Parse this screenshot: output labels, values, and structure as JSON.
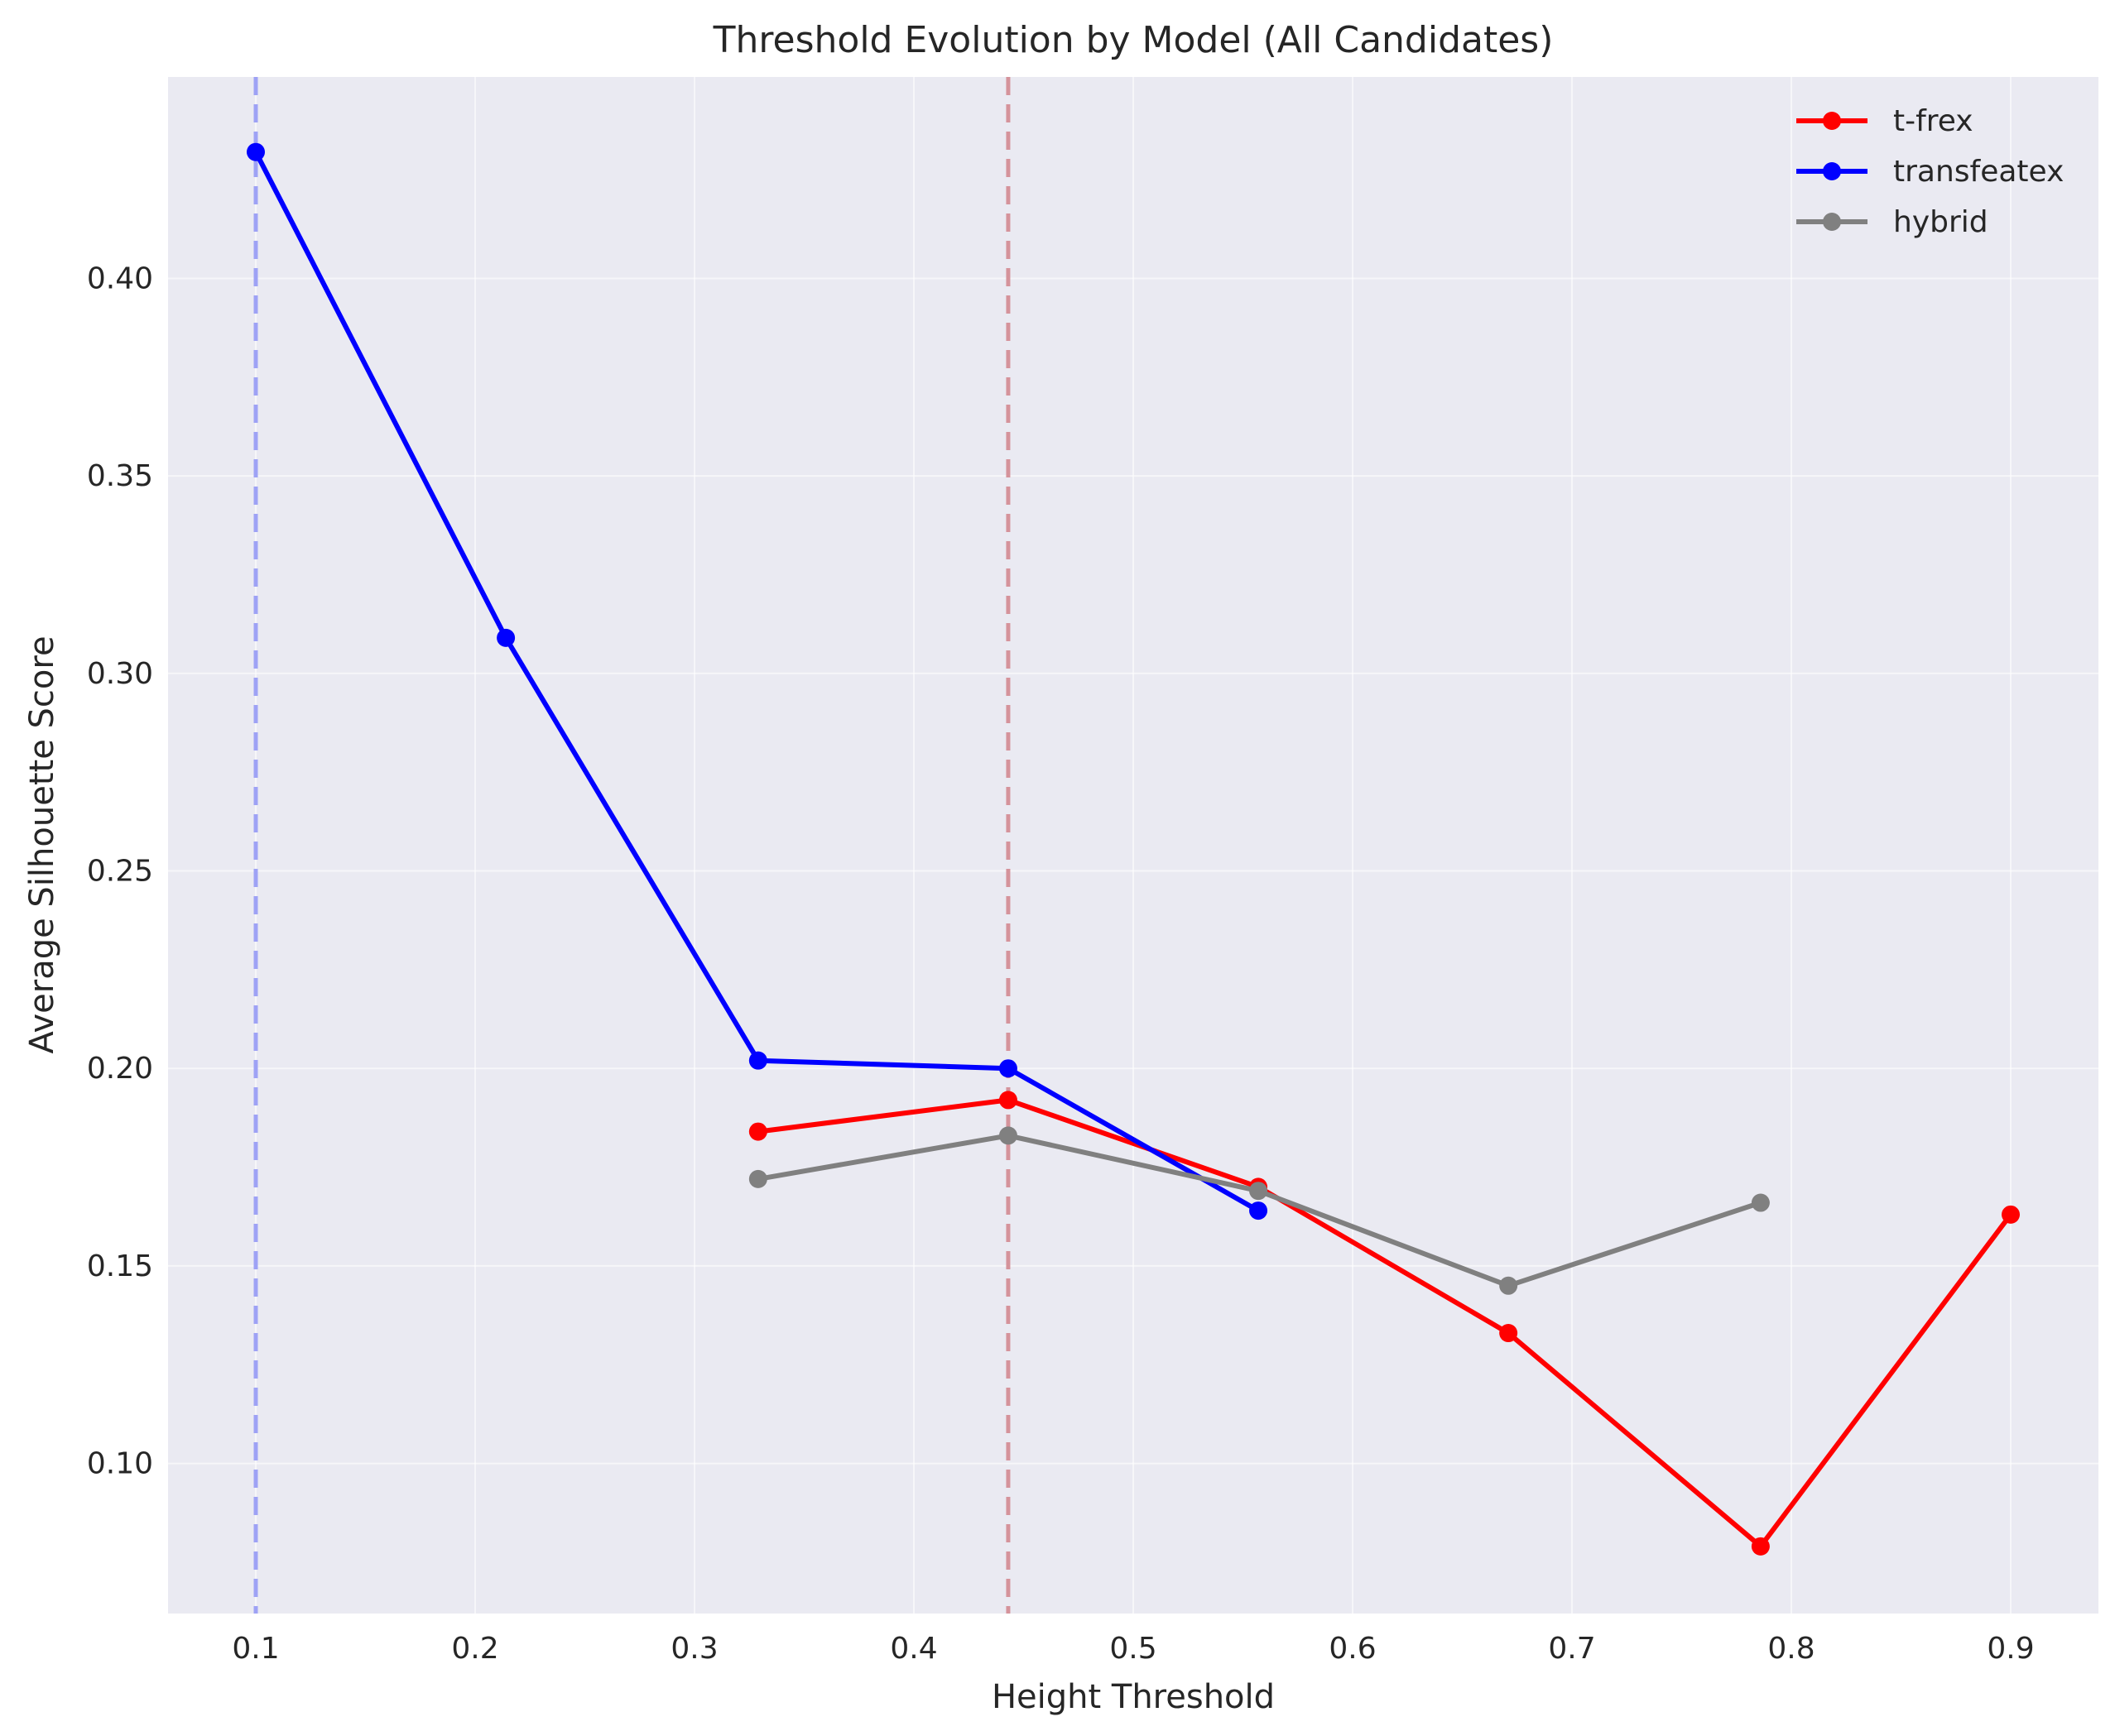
{
  "chart_data": {
    "type": "line",
    "title": "Threshold Evolution by Model (All Candidates)",
    "xlabel": "Height Threshold",
    "ylabel": "Average Silhouette Score",
    "xlim": [
      0.06,
      0.94
    ],
    "ylim": [
      0.062,
      0.451
    ],
    "xticks": [
      "0.1",
      "0.2",
      "0.3",
      "0.4",
      "0.5",
      "0.6",
      "0.7",
      "0.8",
      "0.9"
    ],
    "yticks": [
      "0.10",
      "0.15",
      "0.20",
      "0.25",
      "0.30",
      "0.35",
      "0.40"
    ],
    "grid": true,
    "legend_position": "top-right",
    "background": "#eaeaf2",
    "series": [
      {
        "name": "t-frex",
        "color": "#ff0000",
        "x": [
          0.329,
          0.443,
          0.557,
          0.671,
          0.786,
          0.9
        ],
        "y": [
          0.184,
          0.192,
          0.17,
          0.133,
          0.079,
          0.163
        ]
      },
      {
        "name": "transfeatex",
        "color": "#0000ff",
        "x": [
          0.1,
          0.214,
          0.329,
          0.443,
          0.557
        ],
        "y": [
          0.432,
          0.309,
          0.202,
          0.2,
          0.164
        ]
      },
      {
        "name": "hybrid",
        "color": "#808080",
        "x": [
          0.329,
          0.443,
          0.557,
          0.671,
          0.786
        ],
        "y": [
          0.172,
          0.183,
          0.169,
          0.145,
          0.166
        ]
      }
    ],
    "vlines": [
      {
        "x": 0.1,
        "color": "#9ea2f5",
        "style": "dashed"
      },
      {
        "x": 0.443,
        "color": "#d5939b",
        "style": "dashed"
      }
    ]
  }
}
